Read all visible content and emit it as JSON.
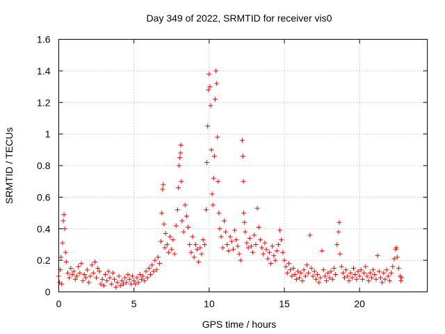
{
  "chart_data": {
    "type": "scatter",
    "title": "Day 349 of 2022, SRMTID for receiver vis0",
    "xlabel": "GPS time / hours",
    "ylabel": "SRMTID / TECUs",
    "xlim": [
      0,
      24.5
    ],
    "ylim": [
      0,
      1.6
    ],
    "xticks": [
      0,
      5,
      10,
      15,
      20
    ],
    "xtick_labels": [
      "0",
      "5",
      "10",
      "15",
      "20"
    ],
    "yticks": [
      0,
      0.2,
      0.4,
      0.6,
      0.8,
      1,
      1.2,
      1.4,
      1.6
    ],
    "ytick_labels": [
      "0",
      "0.2",
      "0.4",
      "0.6",
      "0.8",
      "1",
      "1.2",
      "1.4",
      "1.6"
    ],
    "grid": true,
    "marker": "plus",
    "color": "#ff0000",
    "series": [
      {
        "name": "vis0",
        "points": [
          [
            0.0,
            0.1
          ],
          [
            0.05,
            0.06
          ],
          [
            0.1,
            0.14
          ],
          [
            0.15,
            0.22
          ],
          [
            0.2,
            0.05
          ],
          [
            0.25,
            0.31
          ],
          [
            0.3,
            0.45
          ],
          [
            0.35,
            0.49
          ],
          [
            0.4,
            0.4
          ],
          [
            0.45,
            0.25
          ],
          [
            0.5,
            0.19
          ],
          [
            0.6,
            0.12
          ],
          [
            0.7,
            0.09
          ],
          [
            0.8,
            0.15
          ],
          [
            0.9,
            0.11
          ],
          [
            1.0,
            0.13
          ],
          [
            1.1,
            0.08
          ],
          [
            1.2,
            0.1
          ],
          [
            1.3,
            0.16
          ],
          [
            1.4,
            0.12
          ],
          [
            1.5,
            0.18
          ],
          [
            1.6,
            0.07
          ],
          [
            1.7,
            0.11
          ],
          [
            1.8,
            0.09
          ],
          [
            1.9,
            0.14
          ],
          [
            2.0,
            0.06
          ],
          [
            2.1,
            0.1
          ],
          [
            2.2,
            0.17
          ],
          [
            2.3,
            0.12
          ],
          [
            2.4,
            0.19
          ],
          [
            2.5,
            0.09
          ],
          [
            2.6,
            0.15
          ],
          [
            2.7,
            0.13
          ],
          [
            2.8,
            0.05
          ],
          [
            2.9,
            0.08
          ],
          [
            3.0,
            0.04
          ],
          [
            3.1,
            0.11
          ],
          [
            3.2,
            0.07
          ],
          [
            3.3,
            0.13
          ],
          [
            3.4,
            0.09
          ],
          [
            3.5,
            0.05
          ],
          [
            3.6,
            0.12
          ],
          [
            3.7,
            0.08
          ],
          [
            3.8,
            0.03
          ],
          [
            3.9,
            0.06
          ],
          [
            4.0,
            0.1
          ],
          [
            4.1,
            0.04
          ],
          [
            4.2,
            0.07
          ],
          [
            4.3,
            0.05
          ],
          [
            4.4,
            0.09
          ],
          [
            4.5,
            0.06
          ],
          [
            4.6,
            0.11
          ],
          [
            4.7,
            0.08
          ],
          [
            4.8,
            0.05
          ],
          [
            4.9,
            0.1
          ],
          [
            5.0,
            0.07
          ],
          [
            5.1,
            0.05
          ],
          [
            5.2,
            0.09
          ],
          [
            5.3,
            0.06
          ],
          [
            5.4,
            0.11
          ],
          [
            5.5,
            0.08
          ],
          [
            5.6,
            0.1
          ],
          [
            5.7,
            0.07
          ],
          [
            5.8,
            0.13
          ],
          [
            5.9,
            0.09
          ],
          [
            6.0,
            0.15
          ],
          [
            6.1,
            0.11
          ],
          [
            6.2,
            0.17
          ],
          [
            6.3,
            0.13
          ],
          [
            6.4,
            0.2
          ],
          [
            6.5,
            0.14
          ],
          [
            6.6,
            0.22
          ],
          [
            6.7,
            0.18
          ],
          [
            6.8,
            0.32
          ],
          [
            6.85,
            0.5
          ],
          [
            6.9,
            0.65
          ],
          [
            6.95,
            0.68
          ],
          [
            7.0,
            0.43
          ],
          [
            7.05,
            0.28
          ],
          [
            7.1,
            0.37
          ],
          [
            7.2,
            0.3
          ],
          [
            7.3,
            0.25
          ],
          [
            7.4,
            0.35
          ],
          [
            7.5,
            0.27
          ],
          [
            7.6,
            0.33
          ],
          [
            7.7,
            0.24
          ],
          [
            7.8,
            0.42
          ],
          [
            7.9,
            0.52
          ],
          [
            7.95,
            0.66
          ],
          [
            8.0,
            0.8
          ],
          [
            8.05,
            0.85
          ],
          [
            8.1,
            0.88
          ],
          [
            8.12,
            0.93
          ],
          [
            8.15,
            0.7
          ],
          [
            8.2,
            0.45
          ],
          [
            8.3,
            0.38
          ],
          [
            8.4,
            0.55
          ],
          [
            8.5,
            0.48
          ],
          [
            8.6,
            0.41
          ],
          [
            8.7,
            0.3
          ],
          [
            8.8,
            0.25
          ],
          [
            8.9,
            0.35
          ],
          [
            9.0,
            0.22
          ],
          [
            9.1,
            0.3
          ],
          [
            9.2,
            0.27
          ],
          [
            9.3,
            0.19
          ],
          [
            9.4,
            0.28
          ],
          [
            9.5,
            0.24
          ],
          [
            9.6,
            0.33
          ],
          [
            9.7,
            0.3
          ],
          [
            9.8,
            0.52
          ],
          [
            9.85,
            0.82
          ],
          [
            9.9,
            1.05
          ],
          [
            9.95,
            1.28
          ],
          [
            10.0,
            1.38
          ],
          [
            10.05,
            1.3
          ],
          [
            10.1,
            1.18
          ],
          [
            10.15,
            0.9
          ],
          [
            10.2,
            0.62
          ],
          [
            10.25,
            0.55
          ],
          [
            10.3,
            0.72
          ],
          [
            10.35,
            0.86
          ],
          [
            10.4,
            1.22
          ],
          [
            10.45,
            1.4
          ],
          [
            10.5,
            1.32
          ],
          [
            10.55,
            0.98
          ],
          [
            10.6,
            0.7
          ],
          [
            10.65,
            0.5
          ],
          [
            10.7,
            0.4
          ],
          [
            10.8,
            0.35
          ],
          [
            10.9,
            0.28
          ],
          [
            11.0,
            0.45
          ],
          [
            11.1,
            0.38
          ],
          [
            11.2,
            0.3
          ],
          [
            11.3,
            0.26
          ],
          [
            11.4,
            0.35
          ],
          [
            11.5,
            0.32
          ],
          [
            11.6,
            0.27
          ],
          [
            11.7,
            0.39
          ],
          [
            11.8,
            0.33
          ],
          [
            11.9,
            0.29
          ],
          [
            12.0,
            0.24
          ],
          [
            12.1,
            0.2
          ],
          [
            12.2,
            0.96
          ],
          [
            12.25,
            0.86
          ],
          [
            12.28,
            0.7
          ],
          [
            12.3,
            0.5
          ],
          [
            12.35,
            0.44
          ],
          [
            12.4,
            0.38
          ],
          [
            12.5,
            0.31
          ],
          [
            12.6,
            0.28
          ],
          [
            12.7,
            0.34
          ],
          [
            12.8,
            0.29
          ],
          [
            12.9,
            0.25
          ],
          [
            13.0,
            0.36
          ],
          [
            13.1,
            0.3
          ],
          [
            13.2,
            0.53
          ],
          [
            13.3,
            0.41
          ],
          [
            13.4,
            0.33
          ],
          [
            13.5,
            0.28
          ],
          [
            13.6,
            0.24
          ],
          [
            13.7,
            0.31
          ],
          [
            13.8,
            0.27
          ],
          [
            13.9,
            0.21
          ],
          [
            14.0,
            0.25
          ],
          [
            14.1,
            0.18
          ],
          [
            14.2,
            0.29
          ],
          [
            14.3,
            0.23
          ],
          [
            14.4,
            0.2
          ],
          [
            14.5,
            0.26
          ],
          [
            14.6,
            0.3
          ],
          [
            14.7,
            0.39
          ],
          [
            14.8,
            0.33
          ],
          [
            14.9,
            0.25
          ],
          [
            15.0,
            0.2
          ],
          [
            15.1,
            0.16
          ],
          [
            15.2,
            0.12
          ],
          [
            15.3,
            0.18
          ],
          [
            15.4,
            0.14
          ],
          [
            15.5,
            0.1
          ],
          [
            15.6,
            0.15
          ],
          [
            15.7,
            0.11
          ],
          [
            15.8,
            0.08
          ],
          [
            15.9,
            0.13
          ],
          [
            16.0,
            0.09
          ],
          [
            16.1,
            0.12
          ],
          [
            16.2,
            0.07
          ],
          [
            16.3,
            0.14
          ],
          [
            16.4,
            0.1
          ],
          [
            16.5,
            0.17
          ],
          [
            16.6,
            0.12
          ],
          [
            16.7,
            0.36
          ],
          [
            16.8,
            0.15
          ],
          [
            16.9,
            0.1
          ],
          [
            17.0,
            0.13
          ],
          [
            17.1,
            0.08
          ],
          [
            17.2,
            0.11
          ],
          [
            17.3,
            0.06
          ],
          [
            17.4,
            0.09
          ],
          [
            17.5,
            0.26
          ],
          [
            17.6,
            0.14
          ],
          [
            17.7,
            0.1
          ],
          [
            17.8,
            0.07
          ],
          [
            17.9,
            0.12
          ],
          [
            18.0,
            0.09
          ],
          [
            18.1,
            0.13
          ],
          [
            18.2,
            0.08
          ],
          [
            18.3,
            0.15
          ],
          [
            18.4,
            0.11
          ],
          [
            18.5,
            0.3
          ],
          [
            18.6,
            0.38
          ],
          [
            18.65,
            0.44
          ],
          [
            18.7,
            0.24
          ],
          [
            18.8,
            0.16
          ],
          [
            18.9,
            0.12
          ],
          [
            19.0,
            0.09
          ],
          [
            19.1,
            0.14
          ],
          [
            19.2,
            0.1
          ],
          [
            19.3,
            0.07
          ],
          [
            19.4,
            0.12
          ],
          [
            19.5,
            0.09
          ],
          [
            19.6,
            0.15
          ],
          [
            19.7,
            0.11
          ],
          [
            19.8,
            0.08
          ],
          [
            19.9,
            0.13
          ],
          [
            20.0,
            0.1
          ],
          [
            20.1,
            0.14
          ],
          [
            20.2,
            0.08
          ],
          [
            20.3,
            0.12
          ],
          [
            20.4,
            0.16
          ],
          [
            20.5,
            0.1
          ],
          [
            20.6,
            0.07
          ],
          [
            20.7,
            0.12
          ],
          [
            20.8,
            0.09
          ],
          [
            20.9,
            0.14
          ],
          [
            21.0,
            0.11
          ],
          [
            21.1,
            0.08
          ],
          [
            21.2,
            0.23
          ],
          [
            21.3,
            0.13
          ],
          [
            21.4,
            0.09
          ],
          [
            21.5,
            0.06
          ],
          [
            21.6,
            0.12
          ],
          [
            21.7,
            0.08
          ],
          [
            21.8,
            0.14
          ],
          [
            21.9,
            0.1
          ],
          [
            22.0,
            0.07
          ],
          [
            22.1,
            0.12
          ],
          [
            22.2,
            0.16
          ],
          [
            22.3,
            0.21
          ],
          [
            22.4,
            0.27
          ],
          [
            22.45,
            0.28
          ],
          [
            22.5,
            0.22
          ],
          [
            22.6,
            0.15
          ],
          [
            22.7,
            0.1
          ],
          [
            22.75,
            0.07
          ],
          [
            22.8,
            0.09
          ]
        ]
      }
    ]
  }
}
